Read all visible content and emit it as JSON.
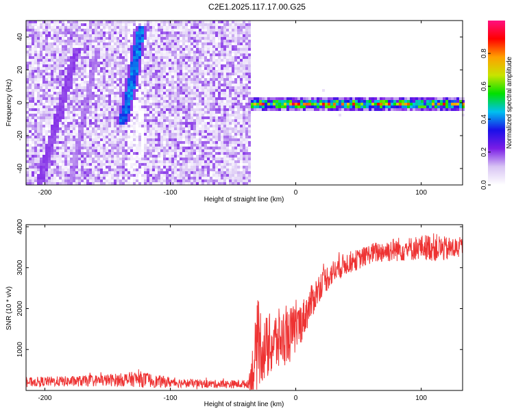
{
  "figure": {
    "title": "C2E1.2025.117.17.00.G25"
  },
  "chart_data": [
    {
      "type": "heatmap",
      "xlabel": "Height of straight line (km)",
      "ylabel": "Frequency (Hz)",
      "xlim": [
        -215,
        133
      ],
      "ylim": [
        -50,
        50
      ],
      "xticks": [
        -200,
        -100,
        0,
        100
      ],
      "yticks": [
        -40,
        -20,
        0,
        20,
        40
      ],
      "colorbar": {
        "label": "Normalized spectral amplitude",
        "range": [
          0,
          1
        ],
        "ticks": [
          0,
          0.2,
          0.4,
          0.6,
          0.8
        ],
        "tick_labels": [
          "0.0",
          "0.2",
          "0.4",
          "0.6",
          "0.8"
        ],
        "colormap": [
          "#ffffff",
          "#d8c4f4",
          "#7a1de6",
          "#1a10e8",
          "#00c0f0",
          "#00e000",
          "#c8e400",
          "#ffa000",
          "#ff0000",
          "#ff1080"
        ]
      },
      "regions": [
        {
          "name": "noise_field",
          "x_range": [
            -215,
            -37
          ],
          "y_range": [
            -50,
            50
          ],
          "amplitude": [
            0.02,
            0.2
          ]
        },
        {
          "name": "diagonal_streak_1",
          "x_start": -205,
          "y_start": -48,
          "x_end": -177,
          "y_end": 30,
          "amplitude": 0.18
        },
        {
          "name": "diagonal_streak_2",
          "x_start": -181,
          "y_start": -50,
          "x_end": -160,
          "y_end": 30,
          "amplitude": 0.14
        },
        {
          "name": "bright_curve",
          "points": [
            [
              -140,
              -12
            ],
            [
              -137,
              -5
            ],
            [
              -134,
              5
            ],
            [
              -130,
              20
            ],
            [
              -127,
              35
            ],
            [
              -124,
              47
            ]
          ],
          "amplitude": 0.35
        },
        {
          "name": "carrier_band",
          "x_range": [
            -37,
            133
          ],
          "frequency": 0,
          "bandwidth_hz": 3,
          "amplitude": [
            0.35,
            0.95
          ]
        }
      ]
    },
    {
      "type": "line",
      "xlabel": "Height of straight line (km)",
      "ylabel": "SNR (10 * v/v)",
      "xlim": [
        -215,
        133
      ],
      "ylim": [
        0,
        4050
      ],
      "xticks": [
        -200,
        -100,
        0,
        100
      ],
      "yticks": [
        1000,
        2000,
        3000,
        4000
      ],
      "color": "#ee3333",
      "series": [
        {
          "x": [
            -215,
            -200,
            -180,
            -160,
            -140,
            -125,
            -110,
            -90,
            -70,
            -50,
            -38,
            -33,
            -30,
            -25,
            -20,
            -15,
            -10,
            -5,
            0,
            5,
            10,
            15,
            20,
            30,
            40,
            50,
            60,
            70,
            80,
            90,
            100,
            110,
            120,
            133
          ],
          "y": [
            200,
            220,
            220,
            240,
            260,
            280,
            220,
            180,
            160,
            150,
            160,
            600,
            1200,
            1000,
            1100,
            1200,
            1300,
            1350,
            1500,
            1700,
            2000,
            2300,
            2600,
            2900,
            3100,
            3200,
            3350,
            3400,
            3450,
            3450,
            3500,
            3500,
            3450,
            3500
          ],
          "noise_amplitude": [
            120,
            120,
            130,
            140,
            160,
            200,
            150,
            110,
            100,
            100,
            100,
            900,
            1100,
            800,
            800,
            800,
            700,
            700,
            600,
            500,
            450,
            400,
            350,
            300,
            280,
            250,
            250,
            280,
            300,
            300,
            300,
            350,
            300,
            250
          ]
        }
      ]
    }
  ]
}
